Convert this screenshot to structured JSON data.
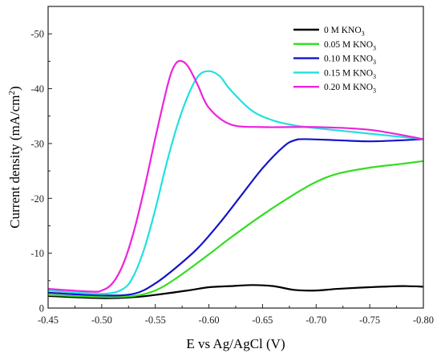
{
  "chart_data": {
    "type": "line",
    "title": "",
    "xlabel": "E vs Ag/AgCl  (V)",
    "ylabel_main": "Current density (mA/cm",
    "ylabel_sup": "2",
    "ylabel_close": ")",
    "xlim": [
      -0.45,
      -0.8
    ],
    "ylim": [
      0,
      -55
    ],
    "x_ticks": [
      -0.45,
      -0.5,
      -0.55,
      -0.6,
      -0.65,
      -0.7,
      -0.75,
      -0.8
    ],
    "x_tick_labels": [
      "-0.45",
      "-0.50",
      "-0.55",
      "-0.60",
      "-0.65",
      "-0.70",
      "-0.75",
      "-0.80"
    ],
    "y_ticks": [
      0,
      -10,
      -20,
      -30,
      -40,
      -50
    ],
    "y_tick_labels": [
      "0",
      "-10",
      "-20",
      "-30",
      "-40",
      "-50"
    ],
    "grid": false,
    "legend_position": "top-right",
    "series": [
      {
        "name": "0 M KNO",
        "name_sub": "3",
        "color": "#000000",
        "x": [
          -0.45,
          -0.5,
          -0.53,
          -0.55,
          -0.58,
          -0.6,
          -0.62,
          -0.64,
          -0.66,
          -0.68,
          -0.7,
          -0.72,
          -0.75,
          -0.78,
          -0.8
        ],
        "y": [
          -2.2,
          -1.8,
          -2.0,
          -2.4,
          -3.2,
          -3.8,
          -4.0,
          -4.2,
          -4.0,
          -3.3,
          -3.2,
          -3.5,
          -3.8,
          -4.0,
          -3.9
        ]
      },
      {
        "name": "0.05 M KNO",
        "name_sub": "3",
        "color": "#33dd22",
        "x": [
          -0.45,
          -0.5,
          -0.53,
          -0.55,
          -0.57,
          -0.6,
          -0.62,
          -0.65,
          -0.68,
          -0.7,
          -0.72,
          -0.75,
          -0.78,
          -0.8
        ],
        "y": [
          -2.4,
          -2.0,
          -2.2,
          -3.2,
          -5.5,
          -9.8,
          -12.8,
          -17.0,
          -20.8,
          -23.0,
          -24.5,
          -25.6,
          -26.3,
          -26.8
        ]
      },
      {
        "name": "0.10 M KNO",
        "name_sub": "3",
        "color": "#1515c8",
        "x": [
          -0.45,
          -0.5,
          -0.53,
          -0.55,
          -0.57,
          -0.59,
          -0.61,
          -0.63,
          -0.65,
          -0.67,
          -0.68,
          -0.69,
          -0.72,
          -0.75,
          -0.78,
          -0.8
        ],
        "y": [
          -2.8,
          -2.3,
          -2.6,
          -4.5,
          -7.5,
          -11.0,
          -15.5,
          -20.5,
          -25.5,
          -29.5,
          -30.6,
          -30.8,
          -30.6,
          -30.4,
          -30.6,
          -30.8
        ]
      },
      {
        "name": "0.15 M KNO",
        "name_sub": "3",
        "color": "#22e0e0",
        "x": [
          -0.45,
          -0.5,
          -0.52,
          -0.53,
          -0.54,
          -0.55,
          -0.56,
          -0.57,
          -0.58,
          -0.59,
          -0.6,
          -0.61,
          -0.62,
          -0.64,
          -0.66,
          -0.68,
          -0.7,
          -0.75,
          -0.8
        ],
        "y": [
          -3.2,
          -2.6,
          -3.5,
          -6.0,
          -11.0,
          -18.0,
          -26.0,
          -33.0,
          -38.5,
          -42.3,
          -43.2,
          -42.3,
          -39.8,
          -36.0,
          -34.2,
          -33.3,
          -32.8,
          -31.8,
          -30.8
        ]
      },
      {
        "name": "0.20 M KNO",
        "name_sub": "3",
        "color": "#ee22dd",
        "x": [
          -0.45,
          -0.49,
          -0.5,
          -0.51,
          -0.52,
          -0.53,
          -0.54,
          -0.55,
          -0.56,
          -0.565,
          -0.57,
          -0.575,
          -0.58,
          -0.585,
          -0.59,
          -0.6,
          -0.62,
          -0.65,
          -0.7,
          -0.75,
          -0.8
        ],
        "y": [
          -3.5,
          -3.0,
          -3.2,
          -4.5,
          -8.0,
          -14.0,
          -22.0,
          -31.0,
          -39.5,
          -43.0,
          -44.8,
          -45.0,
          -44.2,
          -42.5,
          -40.5,
          -36.5,
          -33.5,
          -33.0,
          -33.0,
          -32.5,
          -30.8
        ]
      }
    ]
  }
}
